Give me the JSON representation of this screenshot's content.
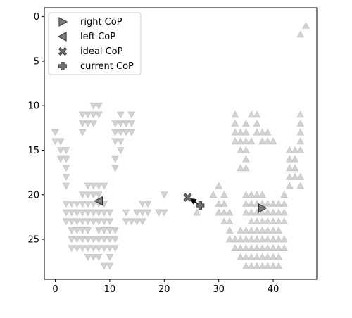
{
  "chart_data": {
    "type": "scatter",
    "xlim": [
      -2,
      48
    ],
    "ylim": [
      29.5,
      -1
    ],
    "y_inverted": true,
    "x_ticks": [
      0,
      10,
      20,
      30,
      40
    ],
    "y_ticks": [
      0,
      5,
      10,
      15,
      20,
      25
    ],
    "grid": false,
    "legend": {
      "placement": "top-left",
      "entries": [
        {
          "label": "right CoP",
          "marker": "triangle-right"
        },
        {
          "label": "left CoP",
          "marker": "triangle-left"
        },
        {
          "label": "ideal CoP",
          "marker": "x"
        },
        {
          "label": "current CoP",
          "marker": "plus"
        }
      ]
    },
    "pressure_up": {
      "marker": "triangle-up",
      "color": "#d3d3d3",
      "rows": [
        [
          1,
          [
            46
          ]
        ],
        [
          2,
          [
            45
          ]
        ],
        [
          11,
          [
            33,
            36,
            37,
            45
          ]
        ],
        [
          12,
          [
            33,
            35,
            37,
            45
          ]
        ],
        [
          13,
          [
            33,
            34,
            35,
            37,
            38,
            39,
            45
          ]
        ],
        [
          14,
          [
            33,
            34,
            35,
            36,
            38,
            39,
            40,
            45
          ]
        ],
        [
          15,
          [
            34,
            35,
            43,
            44,
            45
          ]
        ],
        [
          16,
          [
            35,
            43,
            44
          ]
        ],
        [
          17,
          [
            34,
            35,
            43,
            44
          ]
        ],
        [
          18,
          [
            43,
            44,
            45
          ]
        ],
        [
          19,
          [
            30,
            43,
            45
          ]
        ],
        [
          20,
          [
            29,
            31,
            35,
            36,
            37,
            38,
            42
          ]
        ],
        [
          21,
          [
            30,
            31,
            35,
            36,
            37,
            38,
            39,
            40,
            41,
            42
          ]
        ],
        [
          22,
          [
            26,
            30,
            31,
            32,
            35,
            36,
            37,
            38,
            39,
            40,
            41,
            42
          ]
        ],
        [
          23,
          [
            31,
            32,
            36,
            37,
            38,
            39,
            40,
            41,
            42
          ]
        ],
        [
          24,
          [
            32,
            34,
            35,
            36,
            37,
            38,
            39,
            40,
            41
          ]
        ],
        [
          25,
          [
            32,
            33,
            34,
            35,
            36,
            37,
            38,
            39,
            40,
            41,
            42
          ]
        ],
        [
          26,
          [
            33,
            34,
            35,
            36,
            37,
            38,
            39,
            40,
            41,
            42
          ]
        ],
        [
          27,
          [
            34,
            35,
            36,
            37,
            38,
            39,
            40,
            41
          ]
        ],
        [
          28,
          [
            35,
            36,
            37,
            38,
            39,
            40,
            41
          ]
        ]
      ]
    },
    "pressure_down": {
      "marker": "triangle-down",
      "color": "#d3d3d3",
      "rows": [
        [
          10,
          [
            7,
            8
          ]
        ],
        [
          11,
          [
            5,
            6,
            7,
            8,
            12,
            14
          ]
        ],
        [
          12,
          [
            5,
            6,
            7,
            11,
            12,
            13,
            14
          ]
        ],
        [
          13,
          [
            0,
            5,
            11,
            12,
            13,
            14
          ]
        ],
        [
          14,
          [
            0,
            1,
            11,
            12
          ]
        ],
        [
          15,
          [
            1,
            2,
            12
          ]
        ],
        [
          16,
          [
            1,
            2,
            11
          ]
        ],
        [
          17,
          [
            2,
            11
          ]
        ],
        [
          18,
          [
            2
          ]
        ],
        [
          19,
          [
            2,
            6,
            7,
            8,
            9
          ]
        ],
        [
          20,
          [
            5,
            6,
            7,
            8,
            20
          ]
        ],
        [
          21,
          [
            2,
            3,
            4,
            5,
            6,
            7,
            8,
            9,
            16,
            17
          ]
        ],
        [
          22,
          [
            2,
            3,
            4,
            5,
            6,
            7,
            8,
            9,
            10,
            13,
            15,
            16,
            17,
            19,
            20
          ]
        ],
        [
          23,
          [
            2,
            3,
            4,
            5,
            6,
            7,
            8,
            9,
            10,
            13,
            14,
            15,
            16
          ]
        ],
        [
          24,
          [
            3,
            4,
            5,
            6,
            8,
            9,
            10,
            11
          ]
        ],
        [
          25,
          [
            3,
            4,
            5,
            6,
            7,
            8,
            9,
            10,
            11
          ]
        ],
        [
          26,
          [
            3,
            4,
            5,
            6,
            7,
            8,
            9,
            10,
            11
          ]
        ],
        [
          27,
          [
            6,
            7,
            8,
            10
          ]
        ],
        [
          28,
          [
            9,
            10
          ]
        ]
      ]
    },
    "right_cop": {
      "x": 38,
      "y": 21.5
    },
    "left_cop": {
      "x": 8,
      "y": 20.7
    },
    "ideal_cop": {
      "x": 24.3,
      "y": 20.3
    },
    "current_cop": {
      "x": 26.6,
      "y": 21.2
    },
    "arrow": {
      "from": [
        26.6,
        21.2
      ],
      "to": [
        24.7,
        20.4
      ]
    }
  }
}
